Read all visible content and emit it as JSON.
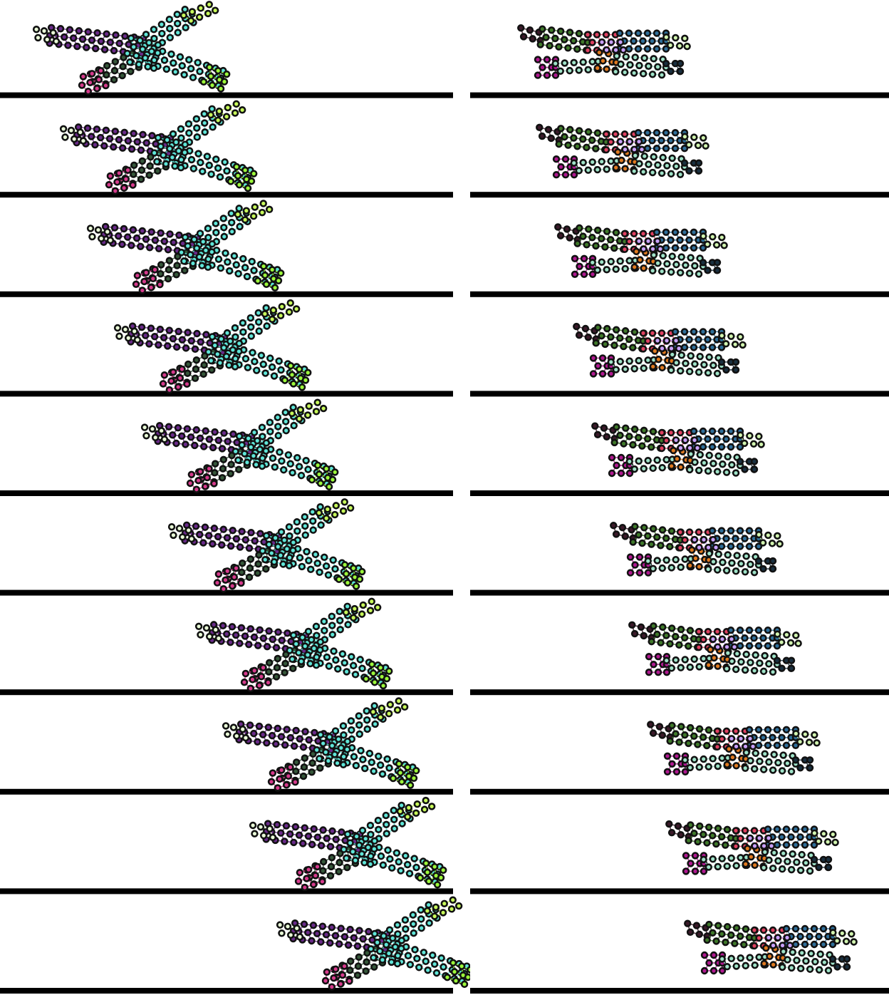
{
  "figure": {
    "columns": [
      {
        "id": "left",
        "creature": "four-armed-crawler",
        "frame_count": 10,
        "palette": {
          "arm_upper_left": "#6a2a8a",
          "arm_upper_right": "#c8ff5a",
          "arm_lower_left": "#d63a8c",
          "arm_lower_right": "#9dff3a",
          "body": "#5fe6d8",
          "hinge": "#35583a",
          "tip": "#eaffd8",
          "node": "#111111"
        }
      },
      {
        "id": "right",
        "creature": "stacked-walker",
        "frame_count": 10,
        "palette": {
          "upper_tail": "#3c1a2a",
          "upper_mid": "#3f7a2a",
          "upper_head": "#2f6f9a",
          "upper_tip": "#d2f5b0",
          "joint": "#e04060",
          "lower_tail": "#b01890",
          "lower_mid": "#e07a20",
          "lower_body": "#9fe3c8",
          "lower_head": "#1a3040",
          "accent": "#c9a0ff",
          "node": "#111111"
        }
      }
    ],
    "ground_color": "#000000",
    "background_color": "#ffffff"
  }
}
